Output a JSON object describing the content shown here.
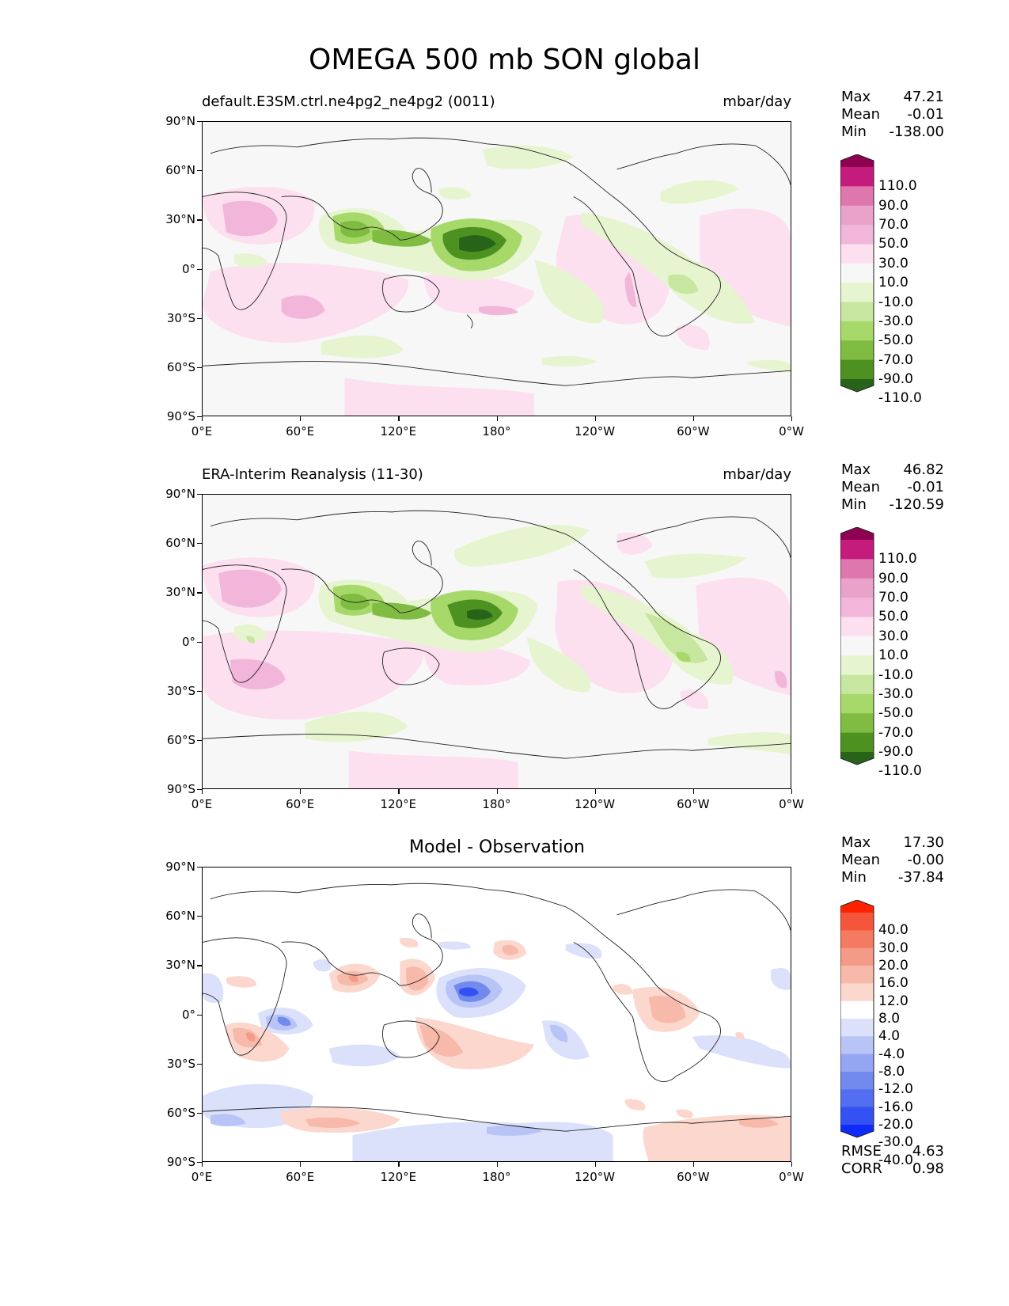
{
  "figure_title": "OMEGA 500 mb SON global",
  "x_ticks": [
    "0°E",
    "60°E",
    "120°E",
    "180°",
    "120°W",
    "60°W",
    "0°W"
  ],
  "y_ticks": [
    "90°N",
    "60°N",
    "30°N",
    "0°",
    "30°S",
    "60°S",
    "90°S"
  ],
  "panels": [
    {
      "left_title": "default.E3SM.ctrl.ne4pg2_ne4pg2 (0011)",
      "right_title": "mbar/day",
      "center_title": "",
      "stats": {
        "max_label": "Max",
        "max": "47.21",
        "mean_label": "Mean",
        "mean": "-0.01",
        "min_label": "Min",
        "min": "-138.00"
      }
    },
    {
      "left_title": "ERA-Interim Reanalysis (11-30)",
      "right_title": "mbar/day",
      "center_title": "",
      "stats": {
        "max_label": "Max",
        "max": "46.82",
        "mean_label": "Mean",
        "mean": "-0.01",
        "min_label": "Min",
        "min": "-120.59"
      }
    },
    {
      "left_title": "",
      "right_title": "",
      "center_title": "Model - Observation",
      "stats": {
        "max_label": "Max",
        "max": "17.30",
        "mean_label": "Mean",
        "mean": "-0.00",
        "min_label": "Min",
        "min": "-37.84"
      }
    }
  ],
  "colorbars": {
    "omega": {
      "labels": [
        "110.0",
        "90.0",
        "70.0",
        "50.0",
        "30.0",
        "10.0",
        "-10.0",
        "-30.0",
        "-50.0",
        "-70.0",
        "-90.0",
        "-110.0"
      ],
      "colors": [
        "#8e0152",
        "#c51b7d",
        "#de77ae",
        "#e9a3c9",
        "#f1b6da",
        "#fde0ef",
        "#f7f7f7",
        "#e6f5d0",
        "#c7e7a0",
        "#a6d96a",
        "#7fbc41",
        "#4d9221",
        "#276419"
      ]
    },
    "diff": {
      "labels": [
        "40.0",
        "30.0",
        "20.0",
        "16.0",
        "12.0",
        "8.0",
        "4.0",
        "-4.0",
        "-8.0",
        "-12.0",
        "-16.0",
        "-20.0",
        "-30.0",
        "-40.0"
      ],
      "colors": [
        "#ff2200",
        "#f5563b",
        "#f47a62",
        "#f49a86",
        "#f7b9a9",
        "#fbd7cd",
        "#ffffff",
        "#dbe1fb",
        "#b8c4f6",
        "#94a6f2",
        "#7289ee",
        "#536ef0",
        "#3451f3",
        "#0d2bf9"
      ]
    }
  },
  "metrics": {
    "rmse_label": "RMSE",
    "rmse": "4.63",
    "corr_label": "CORR",
    "corr": "0.98"
  },
  "chart_data": [
    {
      "type": "heatmap",
      "title": "default.E3SM.ctrl.ne4pg2_ne4pg2 (0011)",
      "units": "mbar/day",
      "xlim": [
        0,
        360
      ],
      "ylim": [
        -90,
        90
      ],
      "color_levels": [
        -110,
        -90,
        -70,
        -50,
        -30,
        -10,
        10,
        30,
        50,
        70,
        90,
        110
      ],
      "max": 47.21,
      "mean": -0.01,
      "min": -138.0
    },
    {
      "type": "heatmap",
      "title": "ERA-Interim Reanalysis (11-30)",
      "units": "mbar/day",
      "xlim": [
        0,
        360
      ],
      "ylim": [
        -90,
        90
      ],
      "color_levels": [
        -110,
        -90,
        -70,
        -50,
        -30,
        -10,
        10,
        30,
        50,
        70,
        90,
        110
      ],
      "max": 46.82,
      "mean": -0.01,
      "min": -120.59
    },
    {
      "type": "heatmap",
      "title": "Model - Observation",
      "xlim": [
        0,
        360
      ],
      "ylim": [
        -90,
        90
      ],
      "color_levels": [
        -40,
        -30,
        -20,
        -16,
        -12,
        -8,
        -4,
        4,
        8,
        12,
        16,
        20,
        30,
        40
      ],
      "max": 17.3,
      "mean": -0.0,
      "min": -37.84,
      "rmse": 4.63,
      "corr": 0.98
    }
  ]
}
